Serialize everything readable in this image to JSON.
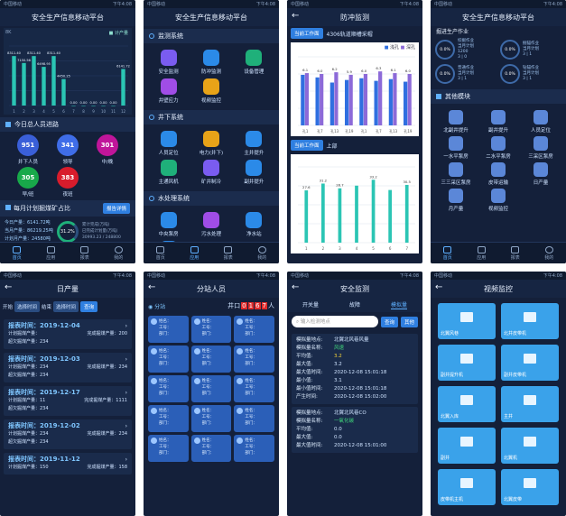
{
  "status_time": "下午4:08",
  "p1": {
    "title": "安全生产信息移动平台",
    "legend": "计产量",
    "y_max": "8K",
    "chart_data": {
      "type": "bar",
      "categories": [
        "1",
        "2",
        "3",
        "4",
        "5",
        "6",
        "7",
        "8",
        "9",
        "10",
        "11",
        "12"
      ],
      "values": [
        8311.4,
        7150.56,
        8311.4,
        6498.95,
        8311.4,
        4450.25,
        0,
        0,
        0,
        0,
        0,
        6141.72
      ],
      "labels": [
        "8311.40",
        "7150.56",
        "8311.40",
        "6498.95",
        "8311.40",
        "4450.25",
        "0.00",
        "0.00",
        "0.00",
        "0.00",
        "0.00",
        "6141.72"
      ],
      "ylim": [
        0,
        10000
      ]
    },
    "section_alarm": "今日总人员进路",
    "circles": [
      {
        "value": "951",
        "label": "井下人员",
        "color": "#3a5fd8"
      },
      {
        "value": "341",
        "label": "领导",
        "color": "#3f6de8"
      },
      {
        "value": "301",
        "label": "中/晚",
        "color": "#c0159a"
      },
      {
        "value": "305",
        "label": "早/班",
        "color": "#18a94a"
      },
      {
        "value": "383",
        "label": "夜班",
        "color": "#d81c2c"
      }
    ],
    "section_month": "每月计划掘煤矿占比",
    "month_btn": "报告详情",
    "month_rows": [
      "今日产量：6141.72吨",
      "当月产量：86219.25吨",
      "计划月产量：24580吨"
    ],
    "pct": "31.2%",
    "pct_side": [
      "累计完成(万吨)",
      "已完成计划量(万吨)",
      "30993.23 / 248800"
    ],
    "nav": [
      "首页",
      "应用",
      "报表",
      "我的"
    ]
  },
  "p2": {
    "title": "安全生产信息移动平台",
    "sections": [
      {
        "name": "监测系统",
        "items": [
          {
            "label": "安全监测",
            "color": "#7a5cf0"
          },
          {
            "label": "防冲监测",
            "color": "#2b8ae8"
          },
          {
            "label": "设备管理",
            "color": "#1fb07a"
          },
          {
            "label": "井壁应力",
            "color": "#a04de6"
          },
          {
            "label": "视频监控",
            "color": "#e8a318"
          }
        ]
      },
      {
        "name": "井下系统",
        "items": [
          {
            "label": "人员定位",
            "color": "#2b8ae8"
          },
          {
            "label": "电力(井下)",
            "color": "#e8a318"
          },
          {
            "label": "主井提升",
            "color": "#2b8ae8"
          },
          {
            "label": "主通风机",
            "color": "#1fb07a"
          },
          {
            "label": "矿井制冷",
            "color": "#7a5cf0"
          },
          {
            "label": "副井提升",
            "color": "#2b8ae8"
          }
        ]
      },
      {
        "name": "水处理系统",
        "items": [
          {
            "label": "中央泵房",
            "color": "#2b8ae8"
          },
          {
            "label": "污水处理",
            "color": "#a04de6"
          },
          {
            "label": "净水站",
            "color": "#2b8ae8"
          },
          {
            "label": "井水处理",
            "color": "#2b8ae8"
          }
        ]
      }
    ],
    "nav": [
      "首页",
      "应用",
      "报表",
      "我的"
    ]
  },
  "p3": {
    "title": "防冲监测",
    "tag1": "当前工作面",
    "place1": "4306轨道顺槽采帽",
    "legend1": [
      "浅孔",
      "深孔"
    ],
    "chart1": {
      "type": "bar",
      "categories": [
        "孔1",
        "孔7",
        "孔13",
        "孔19",
        "孔1",
        "孔7",
        "孔13",
        "孔19"
      ],
      "series": [
        {
          "name": "浅孔",
          "values": [
            5.9,
            5.6,
            5.0,
            5.3,
            5.5,
            5.2,
            5.4,
            5.1
          ]
        },
        {
          "name": "深孔",
          "values": [
            6.1,
            6.0,
            6.2,
            5.9,
            6.0,
            6.3,
            6.1,
            6.0
          ]
        }
      ],
      "labels": [
        "6.1",
        "6.0",
        "6.2",
        "5.9",
        "6.0",
        "6.3",
        "6.1",
        "6.0"
      ],
      "ylim": [
        0,
        8
      ]
    },
    "tag2": "当前工作面",
    "place2": "上部",
    "chart2": {
      "type": "line",
      "categories": [
        "1",
        "2",
        "3",
        "4",
        "5",
        "6",
        "7"
      ],
      "values": [
        27.6,
        31.2,
        28.7,
        30.1,
        33.2,
        27.8,
        30.5
      ],
      "labels": [
        "27.6",
        "31.2",
        "28.7",
        "",
        "33.2",
        "",
        "30.5"
      ],
      "ylim": [
        0,
        40
      ]
    },
    "nav": [
      "首页",
      "应用",
      "报表",
      "我的"
    ]
  },
  "p4": {
    "title": "安全生产信息移动平台",
    "subtitle": "掘进生产作业",
    "stats": [
      {
        "pct": "0.0%",
        "lines": [
          "综掘作业",
          "当月计划",
          "1200",
          "3 | 0"
        ]
      },
      {
        "pct": "0.0%",
        "lines": [
          "掘锚作业",
          "当月计划",
          "3 | 1"
        ]
      },
      {
        "pct": "0.0%",
        "lines": [
          "普通作业",
          "当月计划",
          "3 | 1"
        ]
      },
      {
        "pct": "0.0%",
        "lines": [
          "钻锚作业",
          "当月计划",
          "3 | 1"
        ]
      }
    ],
    "other": "其他模块",
    "items": [
      "北副井提升",
      "副井提升",
      "人员定位",
      "一水平泵房",
      "二水平泵房",
      "三采区泵房",
      "三三采区泵房",
      "皮带运输",
      "日产量",
      "月产量",
      "视频监控"
    ],
    "nav": [
      "首页",
      "应用",
      "报表",
      "我的"
    ]
  },
  "p5": {
    "title": "日产量",
    "filter": [
      "开始",
      "选择时间",
      "结束",
      "选择时间",
      "查询"
    ],
    "records": [
      {
        "time": "报表时间：2019-12-04",
        "l1": "计划掘煤产量：",
        "r1": "完成掘煤产量：200",
        "l2": "超欠掘煤产量：234"
      },
      {
        "time": "报表时间：2019-12-03",
        "l1": "计划掘煤产量：234",
        "r1": "完成掘煤产量：234",
        "l2": "超欠掘煤产量：234"
      },
      {
        "time": "报表时间：2019-12-17",
        "l1": "计划掘煤产量：11",
        "r1": "完成掘煤产量：1111",
        "l2": "超欠掘煤产量：234"
      },
      {
        "time": "报表时间：2019-12-02",
        "l1": "计划掘煤产量：234",
        "r1": "完成掘煤产量：234",
        "l2": "超欠掘煤产量：234"
      },
      {
        "time": "报表时间：2019-11-12",
        "l1": "计划掘煤产量：150",
        "r1": "完成掘煤产量：158",
        "l2": ""
      }
    ]
  },
  "p6": {
    "title": "分站人员",
    "tag": "分站",
    "count_label": "井口",
    "digits": [
      "0",
      "1",
      "6",
      "7"
    ],
    "count_unit": "人",
    "person_lines": [
      "姓名：",
      "工号：",
      "部门："
    ]
  },
  "p7": {
    "title": "安全监测",
    "tabs": [
      "开关量",
      "故障",
      "模拟量"
    ],
    "search_placeholder": "输入检测地点",
    "search_btn": "查询",
    "reset_btn": "其他",
    "block1": [
      [
        "模拟量地点:",
        "北翼北风巷风量"
      ],
      [
        "模拟量名称:",
        "风速"
      ],
      [
        "平均值:",
        "3.2"
      ],
      [
        "最大值:",
        "3.2"
      ],
      [
        "最大值时间:",
        "2020-12-08 15:01:18"
      ],
      [
        "最小值:",
        "3.1"
      ],
      [
        "最小值时间:",
        "2020-12-08 15:01:18"
      ],
      [
        "产生时间:",
        "2020-12-08 15:02:00"
      ]
    ],
    "block2": [
      [
        "模拟量地点:",
        "北翼北风巷CO"
      ],
      [
        "模拟量名称:",
        "一氧化碳"
      ],
      [
        "平均值:",
        "0.0"
      ],
      [
        "最大值:",
        "0.0"
      ],
      [
        "最大值时间:",
        "2020-12-08 15:01:00"
      ]
    ]
  },
  "p8": {
    "title": "视频监控",
    "folders": [
      "北翼风巷",
      "北井皮带机",
      "副井提升机",
      "副井皮带机",
      "北翼入库",
      "主井",
      "副井",
      "北翼机",
      "皮带机主机",
      "北翼皮带"
    ]
  }
}
